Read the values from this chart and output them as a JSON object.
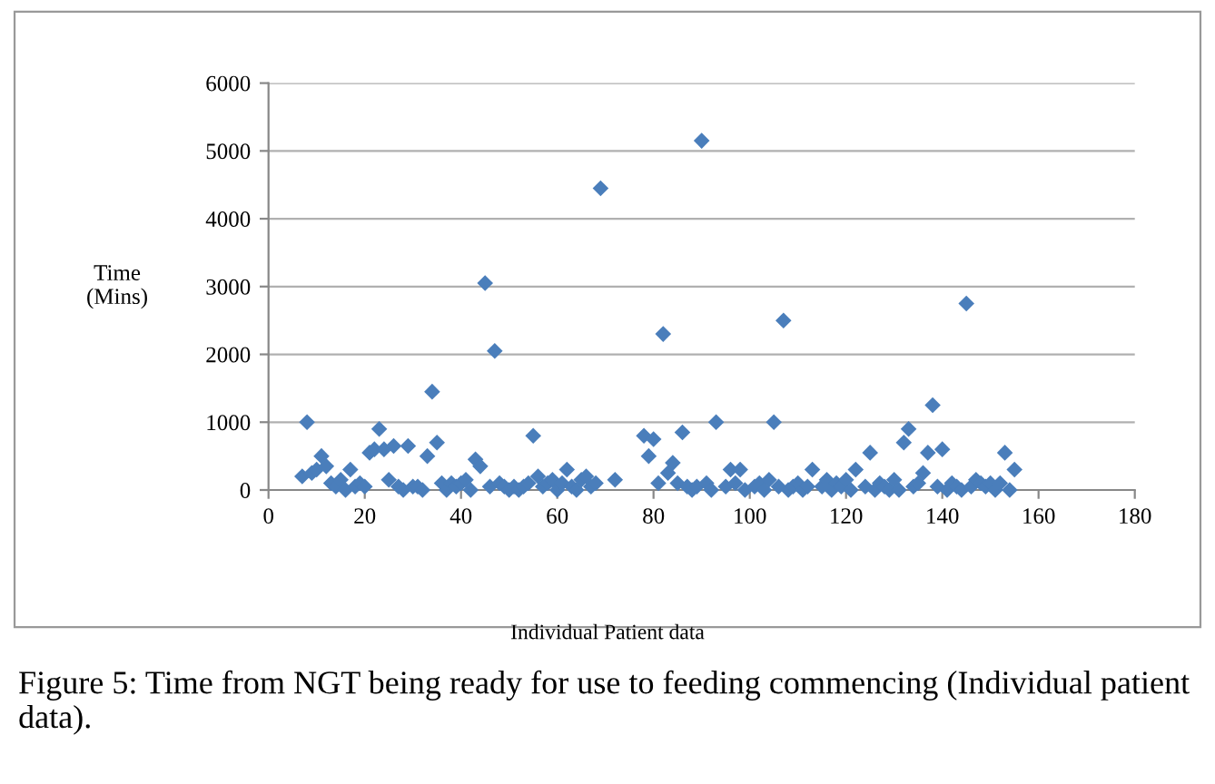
{
  "chart_data": {
    "type": "scatter",
    "xlabel": "Individual Patient data",
    "ylabel": "Time\n(Mins)",
    "annotations": [
      "Figure 5: Time from NGT being ready for use to feeding commencing (Individual patient data)."
    ],
    "x": [
      7,
      8,
      9,
      10,
      11,
      12,
      13,
      14,
      15,
      16,
      17,
      18,
      19,
      20,
      21,
      22,
      23,
      24,
      25,
      26,
      27,
      28,
      29,
      30,
      31,
      32,
      33,
      34,
      35,
      36,
      37,
      38,
      39,
      40,
      41,
      42,
      43,
      44,
      45,
      46,
      47,
      48,
      49,
      50,
      51,
      52,
      53,
      54,
      55,
      56,
      57,
      58,
      59,
      60,
      61,
      62,
      63,
      64,
      65,
      66,
      67,
      68,
      69,
      72,
      78,
      79,
      80,
      81,
      82,
      83,
      84,
      85,
      86,
      87,
      88,
      89,
      90,
      91,
      92,
      93,
      95,
      96,
      97,
      98,
      99,
      101,
      102,
      103,
      104,
      105,
      106,
      107,
      108,
      109,
      110,
      111,
      112,
      113,
      115,
      116,
      117,
      118,
      119,
      120,
      121,
      122,
      124,
      125,
      126,
      127,
      128,
      129,
      130,
      131,
      132,
      133,
      134,
      135,
      136,
      137,
      138,
      139,
      140,
      141,
      142,
      143,
      144,
      145,
      146,
      147,
      148,
      149,
      150,
      151,
      152,
      153,
      154,
      155
    ],
    "series": [
      {
        "color": "#4a7ebb",
        "values": [
          200,
          1000,
          250,
          300,
          500,
          350,
          100,
          50,
          150,
          0,
          300,
          50,
          100,
          50,
          550,
          600,
          900,
          600,
          150,
          650,
          50,
          0,
          650,
          50,
          50,
          0,
          500,
          1450,
          700,
          100,
          0,
          100,
          50,
          100,
          150,
          0,
          450,
          350,
          3050,
          50,
          2050,
          100,
          50,
          0,
          50,
          0,
          50,
          100,
          800,
          200,
          50,
          100,
          150,
          0,
          100,
          300,
          50,
          0,
          150,
          200,
          50,
          100,
          4450,
          150,
          800,
          500,
          750,
          100,
          2300,
          250,
          400,
          100,
          850,
          50,
          0,
          50,
          5150,
          100,
          0,
          1000,
          50,
          300,
          100,
          300,
          0,
          50,
          100,
          0,
          150,
          1000,
          50,
          2500,
          0,
          50,
          100,
          0,
          50,
          300,
          50,
          150,
          0,
          100,
          50,
          150,
          0,
          300,
          50,
          550,
          0,
          100,
          50,
          0,
          150,
          0,
          700,
          900,
          50,
          100,
          250,
          550,
          1250,
          50,
          600,
          0,
          100,
          50,
          0,
          2750,
          50,
          150,
          100,
          50,
          100,
          0,
          100,
          550,
          0,
          300
        ]
      }
    ],
    "xlim": [
      0,
      180
    ],
    "xticks": [
      0,
      20,
      40,
      60,
      80,
      100,
      120,
      140,
      160,
      180
    ],
    "ylim": [
      0,
      6000
    ],
    "yticks": [
      0,
      1000,
      2000,
      3000,
      4000,
      5000,
      6000
    ],
    "grid": "y",
    "marker": "diamond",
    "legend": false
  }
}
